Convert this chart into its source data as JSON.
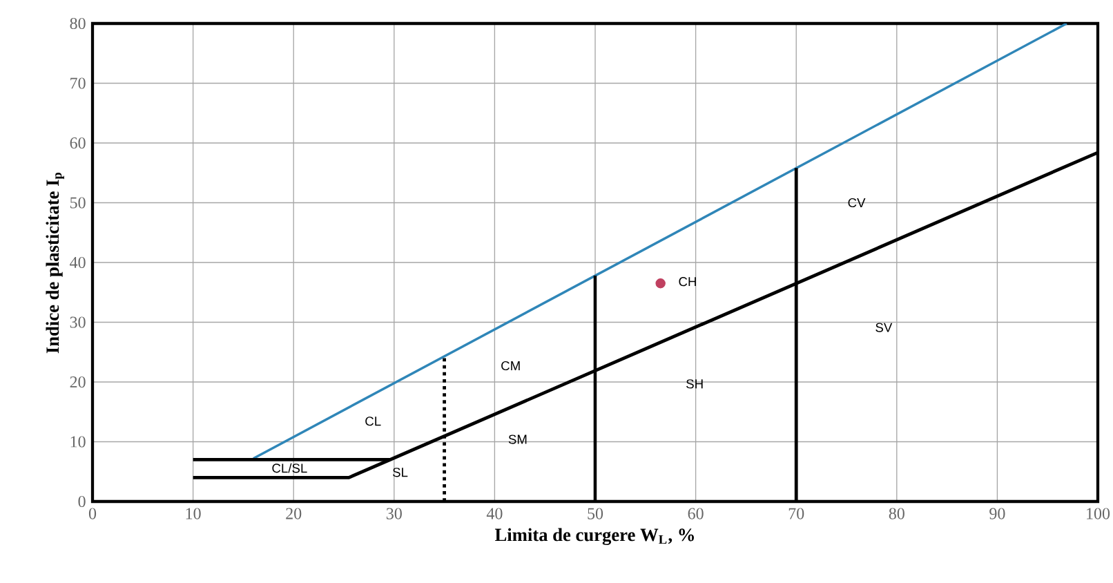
{
  "chart_data": {
    "type": "line",
    "xlabel": "Limita de curgere W$_{L}$, %",
    "ylabel": "Indice de plasticitate I$_{p}$",
    "xlim": [
      0,
      100
    ],
    "ylim": [
      0,
      80
    ],
    "xticks": [
      0,
      10,
      20,
      30,
      40,
      50,
      60,
      70,
      80,
      90,
      100
    ],
    "yticks": [
      0,
      10,
      20,
      30,
      40,
      50,
      60,
      70,
      80
    ],
    "grid": true,
    "series": [
      {
        "color": "#2f86b8",
        "x": [
          16,
          96.9
        ],
        "values": [
          7.2,
          80
        ]
      },
      {
        "color": "#000000",
        "x": [
          10,
          29.6,
          100
        ],
        "values": [
          7,
          7,
          58.4
        ]
      },
      {
        "color": "#000000",
        "x": [
          10,
          25.5,
          29.6
        ],
        "values": [
          4,
          4,
          7
        ]
      },
      {
        "color": "#000000",
        "line_style": "dotted",
        "x": [
          35,
          35
        ],
        "values": [
          0,
          24.3
        ]
      },
      {
        "color": "#000000",
        "x": [
          50,
          50
        ],
        "values": [
          0,
          37.8
        ]
      },
      {
        "color": "#000000",
        "x": [
          70,
          70
        ],
        "values": [
          0,
          55.8
        ]
      },
      {
        "type": "scatter",
        "color": "#c04060",
        "x": [
          56.5
        ],
        "values": [
          36.5
        ]
      }
    ],
    "annotations": [
      "CL",
      "CM",
      "CH",
      "CV",
      "CL/SL",
      "SL",
      "SM",
      "SH",
      "SV"
    ]
  }
}
